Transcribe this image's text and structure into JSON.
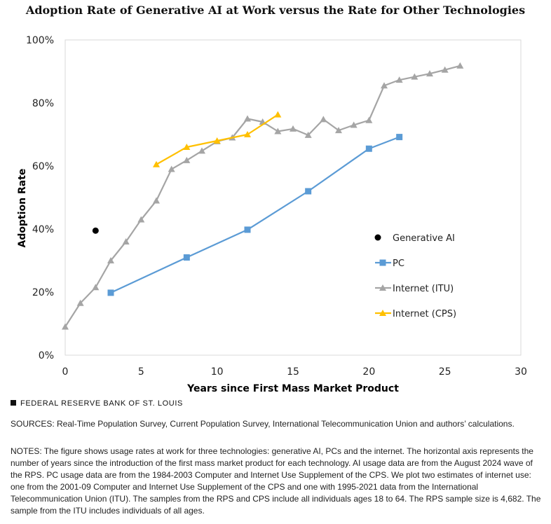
{
  "chart_data": {
    "type": "line",
    "title": "Adoption Rate of Generative AI at Work versus the Rate for Other Technologies",
    "xlabel": "Years since First Mass Market Product",
    "ylabel": "Adoption Rate",
    "xlim": [
      0,
      30
    ],
    "ylim": [
      0,
      100
    ],
    "xticks": [
      0,
      5,
      10,
      15,
      20,
      25,
      30
    ],
    "yticks": [
      0,
      20,
      40,
      60,
      80,
      100
    ],
    "ytick_labels": [
      "0%",
      "20%",
      "40%",
      "60%",
      "80%",
      "100%"
    ],
    "grid": false,
    "legend_position": "right",
    "series": [
      {
        "name": "Generative AI",
        "color": "#000000",
        "marker": "circle",
        "line": false,
        "x": [
          2
        ],
        "y": [
          39.5
        ]
      },
      {
        "name": "PC",
        "color": "#5b9bd5",
        "marker": "square",
        "line": true,
        "x": [
          3,
          8,
          12,
          16,
          20,
          22
        ],
        "y": [
          19.8,
          31,
          39.8,
          52,
          65.5,
          69.2
        ]
      },
      {
        "name": "Internet (ITU)",
        "color": "#a5a5a5",
        "marker": "triangle",
        "line": true,
        "x": [
          0,
          1,
          2,
          3,
          4,
          5,
          6,
          7,
          8,
          9,
          10,
          11,
          12,
          13,
          14,
          15,
          16,
          17,
          18,
          19,
          20,
          21,
          22,
          23,
          24,
          25,
          26
        ],
        "y": [
          9,
          16.5,
          21.5,
          30,
          36,
          43,
          49,
          59,
          61.8,
          64.8,
          67.8,
          69,
          75,
          74,
          71,
          71.8,
          69.8,
          74.8,
          71.3,
          73,
          74.5,
          85.5,
          87.3,
          88.3,
          89.3,
          90.5,
          91.8
        ]
      },
      {
        "name": "Internet (CPS)",
        "color": "#ffc000",
        "marker": "triangle",
        "line": true,
        "x": [
          6,
          8,
          10,
          12,
          14
        ],
        "y": [
          60.5,
          66,
          68,
          70,
          76.3
        ]
      }
    ]
  },
  "footer": {
    "brand": "FEDERAL RESERVE BANK OF ST. LOUIS",
    "sources": "SOURCES: Real-Time Population Survey, Current Population Survey, International Telecommunication Union and authors’ calculations.",
    "notes": "NOTES: The figure shows usage rates at work for three technologies: generative AI, PCs and the internet. The horizontal axis represents the number of years since the introduction of the first mass market product for each technology. AI usage data are from the August 2024 wave of the RPS. PC usage data are from the 1984-2003 Computer and Internet Use Supplement of the CPS. We plot two estimates of internet use: one from the 2001-09 Computer and Internet Use Supplement of the CPS and one with 1995-2021 data from the International Telecommunication Union (ITU). The samples from the RPS and CPS include all individuals ages 18 to 64. The RPS sample size is 4,682. The sample from the ITU includes individuals of all ages."
  }
}
